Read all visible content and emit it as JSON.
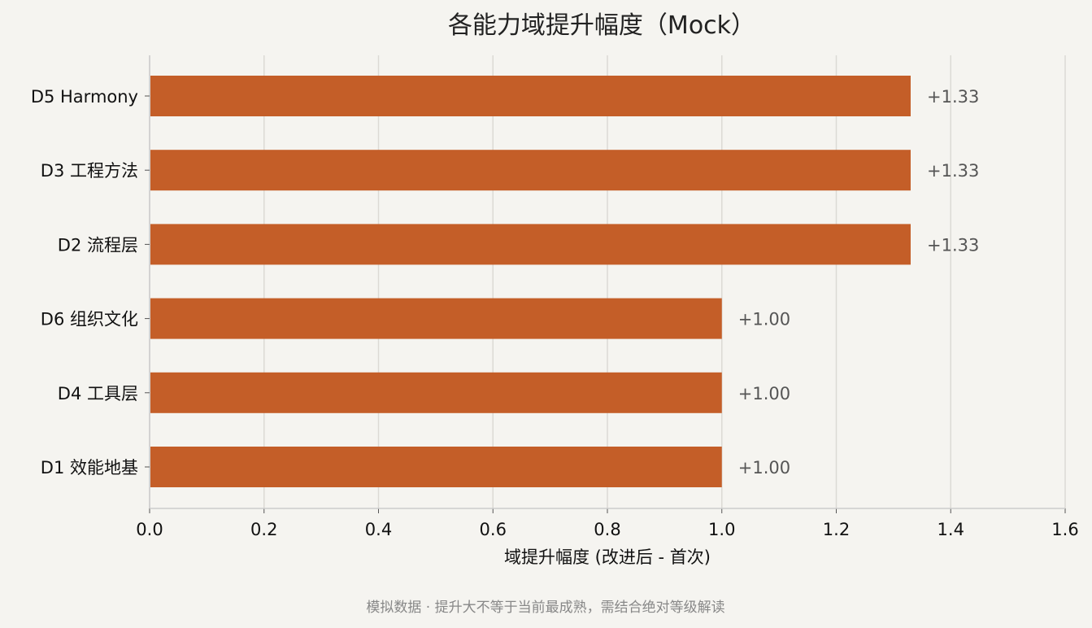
{
  "colors": {
    "background": "#f5f4f0",
    "bar": "#c45e28",
    "grid": "#dcdad5",
    "axis": "#cccccc",
    "value_label": "#555555",
    "footnote": "#888888"
  },
  "chart_data": {
    "type": "bar",
    "orientation": "horizontal",
    "title": "各能力域提升幅度（Mock）",
    "xlabel": "域提升幅度 (改进后 - 首次)",
    "ylabel": "",
    "xlim": [
      0,
      1.6
    ],
    "xticks": [
      "0.0",
      "0.2",
      "0.4",
      "0.6",
      "0.8",
      "1.0",
      "1.2",
      "1.4",
      "1.6"
    ],
    "grid": "vertical",
    "categories": [
      "D5 Harmony",
      "D3 工程方法",
      "D2 流程层",
      "D6 组织文化",
      "D4 工具层",
      "D1 效能地基"
    ],
    "values": [
      1.33,
      1.33,
      1.33,
      1.0,
      1.0,
      1.0
    ],
    "value_labels": [
      "+1.33",
      "+1.33",
      "+1.33",
      "+1.00",
      "+1.00",
      "+1.00"
    ]
  },
  "footnote": "模拟数据 · 提升大不等于当前最成熟，需结合绝对等级解读"
}
